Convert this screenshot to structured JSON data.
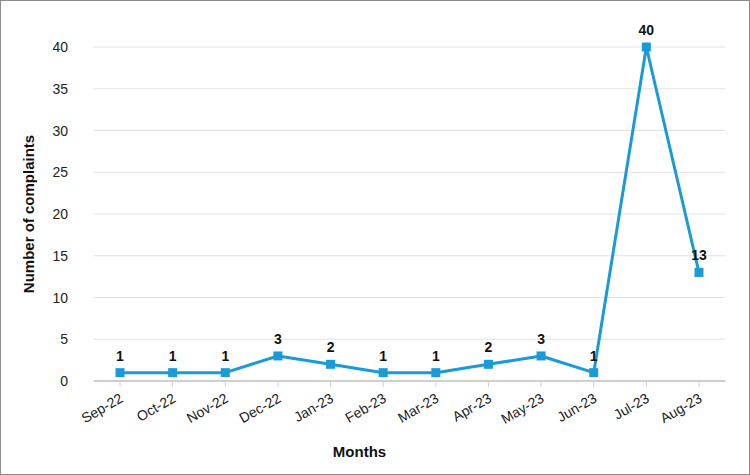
{
  "chart_data": {
    "type": "line",
    "xlabel": "Months",
    "ylabel": "Number of complaints",
    "categories": [
      "Sep-22",
      "Oct-22",
      "Nov-22",
      "Dec-22",
      "Jan-23",
      "Feb-23",
      "Mar-23",
      "Apr-23",
      "May-23",
      "Jun-23",
      "Jul-23",
      "Aug-23"
    ],
    "values": [
      1,
      1,
      1,
      3,
      2,
      1,
      1,
      2,
      3,
      1,
      40,
      13
    ],
    "color": "#1a9ad6",
    "marker": "square",
    "ylim": [
      0,
      40
    ],
    "yticks": [
      0,
      5,
      10,
      15,
      20,
      25,
      30,
      35,
      40
    ],
    "grid": true,
    "data_labels": true
  }
}
